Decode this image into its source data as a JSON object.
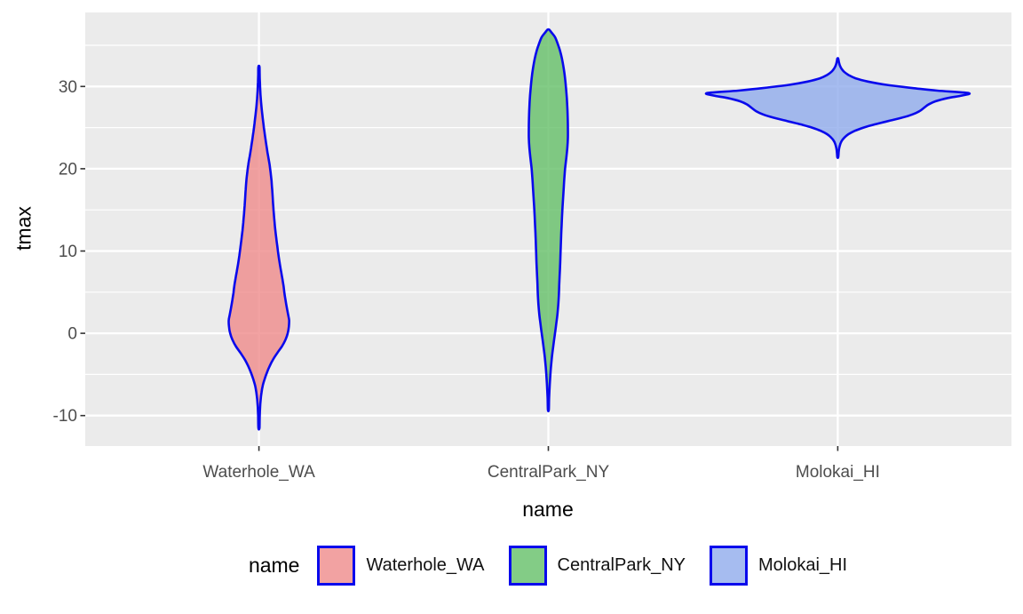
{
  "figure": {
    "background": "#ffffff",
    "panel_background": "#EBEBEB",
    "gridline_color": "#ffffff",
    "tick_mark_color": "#333333",
    "tick_label_color": "#4D4D4D",
    "axis_title_color": "#000000"
  },
  "axes": {
    "x_title": "name",
    "y_title": "tmax"
  },
  "legend": {
    "title": "name",
    "swatch_border_color": "#0909EC",
    "swatch_fill_opacity": 0.8,
    "items": [
      {
        "label": "Waterhole_WA",
        "fill": "#EF8B8B"
      },
      {
        "label": "CentralPark_NY",
        "fill": "#64BF68"
      },
      {
        "label": "Molokai_HI",
        "fill": "#90ABEC"
      }
    ]
  },
  "chart_data": {
    "type": "violin",
    "title": "",
    "xlabel": "name",
    "ylabel": "tmax",
    "categories": [
      "Waterhole_WA",
      "CentralPark_NY",
      "Molokai_HI"
    ],
    "x_positions": [
      1,
      2,
      3
    ],
    "xlim": [
      0.4,
      3.6
    ],
    "ylim": [
      -13.7,
      39.0
    ],
    "y_major_ticks": [
      -10,
      0,
      10,
      20,
      30
    ],
    "y_tick_labels": [
      "-10",
      "0",
      "10",
      "20",
      "30"
    ],
    "y_minor_gridlines": [
      -5,
      5,
      15,
      25,
      35
    ],
    "grid": "on",
    "legend_position": "bottom",
    "outline_color": "#0909EC",
    "outline_width": 2.6,
    "fill_opacity": 0.8,
    "series": [
      {
        "name": "Waterhole_WA",
        "fill": "#EF8B8B",
        "x": 1,
        "tmax_min": -11.5,
        "tmax_max": 32.4,
        "peak_density_tmax": 1.6,
        "profile": [
          [
            32.4,
            0.6
          ],
          [
            31.5,
            0.8
          ],
          [
            30.5,
            1.1
          ],
          [
            29.5,
            1.5
          ],
          [
            28.5,
            2.1
          ],
          [
            27.5,
            2.9
          ],
          [
            26.5,
            3.9
          ],
          [
            25.5,
            5.0
          ],
          [
            24.5,
            6.2
          ],
          [
            23.5,
            7.5
          ],
          [
            22.5,
            8.9
          ],
          [
            21.5,
            10.4
          ],
          [
            20.5,
            12.0
          ],
          [
            19.5,
            13.2
          ],
          [
            18.5,
            14.2
          ],
          [
            17.5,
            14.9
          ],
          [
            16.5,
            15.5
          ],
          [
            15.5,
            16.1
          ],
          [
            14.5,
            16.8
          ],
          [
            13.5,
            17.6
          ],
          [
            12.5,
            18.5
          ],
          [
            11.5,
            19.6
          ],
          [
            10.5,
            20.8
          ],
          [
            9.5,
            22.0
          ],
          [
            8.5,
            23.4
          ],
          [
            7.5,
            25.0
          ],
          [
            6.5,
            26.6
          ],
          [
            5.7,
            27.8
          ],
          [
            4.9,
            28.7
          ],
          [
            4.0,
            30.0
          ],
          [
            3.0,
            31.6
          ],
          [
            2.2,
            33.0
          ],
          [
            1.6,
            34.0
          ],
          [
            0.8,
            33.7
          ],
          [
            0.0,
            32.4
          ],
          [
            -0.8,
            29.8
          ],
          [
            -1.6,
            25.8
          ],
          [
            -2.4,
            20.6
          ],
          [
            -3.2,
            15.8
          ],
          [
            -4.0,
            12.0
          ],
          [
            -4.8,
            8.9
          ],
          [
            -5.6,
            6.3
          ],
          [
            -6.4,
            4.2
          ],
          [
            -7.2,
            2.9
          ],
          [
            -8.0,
            2.0
          ],
          [
            -9.0,
            1.3
          ],
          [
            -10.0,
            0.9
          ],
          [
            -11.5,
            0.6
          ]
        ]
      },
      {
        "name": "CentralPark_NY",
        "fill": "#64BF68",
        "x": 2,
        "tmax_min": -9.3,
        "tmax_max": 36.9,
        "peak_density_tmax": 24.5,
        "profile": [
          [
            36.9,
            1.0
          ],
          [
            36.5,
            4.0
          ],
          [
            36.0,
            7.5
          ],
          [
            35.2,
            10.5
          ],
          [
            34.4,
            13.0
          ],
          [
            33.4,
            15.3
          ],
          [
            32.2,
            17.3
          ],
          [
            31.0,
            18.8
          ],
          [
            29.8,
            19.9
          ],
          [
            28.6,
            20.8
          ],
          [
            27.4,
            21.4
          ],
          [
            26.2,
            21.8
          ],
          [
            25.0,
            22.0
          ],
          [
            23.8,
            22.0
          ],
          [
            22.6,
            21.4
          ],
          [
            21.4,
            20.3
          ],
          [
            20.2,
            19.0
          ],
          [
            19.0,
            18.1
          ],
          [
            17.8,
            17.4
          ],
          [
            16.6,
            16.7
          ],
          [
            15.4,
            16.0
          ],
          [
            14.2,
            15.4
          ],
          [
            13.0,
            14.9
          ],
          [
            11.8,
            14.4
          ],
          [
            10.6,
            14.0
          ],
          [
            9.4,
            13.6
          ],
          [
            8.2,
            13.2
          ],
          [
            7.0,
            12.7
          ],
          [
            5.8,
            12.2
          ],
          [
            4.6,
            11.8
          ],
          [
            3.4,
            11.1
          ],
          [
            2.2,
            10.1
          ],
          [
            1.0,
            8.7
          ],
          [
            0.0,
            7.5
          ],
          [
            -1.0,
            6.2
          ],
          [
            -2.0,
            5.0
          ],
          [
            -3.0,
            3.9
          ],
          [
            -4.0,
            3.0
          ],
          [
            -5.0,
            2.3
          ],
          [
            -6.0,
            1.7
          ],
          [
            -7.0,
            1.2
          ],
          [
            -8.0,
            0.8
          ],
          [
            -9.3,
            0.5
          ]
        ]
      },
      {
        "name": "Molokai_HI",
        "fill": "#90ABEC",
        "x": 3,
        "tmax_min": 21.4,
        "tmax_max": 33.4,
        "peak_density_tmax": 29.2,
        "profile": [
          [
            33.4,
            0.5
          ],
          [
            33.0,
            1.2
          ],
          [
            32.6,
            2.2
          ],
          [
            32.2,
            4.0
          ],
          [
            31.8,
            7.0
          ],
          [
            31.4,
            12.0
          ],
          [
            31.0,
            20.0
          ],
          [
            30.6,
            34.0
          ],
          [
            30.2,
            55.0
          ],
          [
            29.8,
            85.0
          ],
          [
            29.5,
            112.0
          ],
          [
            29.2,
            147.0
          ],
          [
            28.9,
            140.0
          ],
          [
            28.6,
            124.0
          ],
          [
            28.2,
            110.0
          ],
          [
            27.8,
            102.0
          ],
          [
            27.4,
            97.0
          ],
          [
            27.0,
            92.0
          ],
          [
            26.6,
            84.0
          ],
          [
            26.2,
            72.0
          ],
          [
            25.8,
            57.0
          ],
          [
            25.4,
            42.0
          ],
          [
            25.0,
            29.0
          ],
          [
            24.6,
            19.0
          ],
          [
            24.2,
            12.0
          ],
          [
            23.8,
            7.5
          ],
          [
            23.4,
            4.5
          ],
          [
            23.0,
            2.8
          ],
          [
            22.5,
            1.6
          ],
          [
            22.0,
            1.0
          ],
          [
            21.4,
            0.5
          ]
        ]
      }
    ]
  }
}
